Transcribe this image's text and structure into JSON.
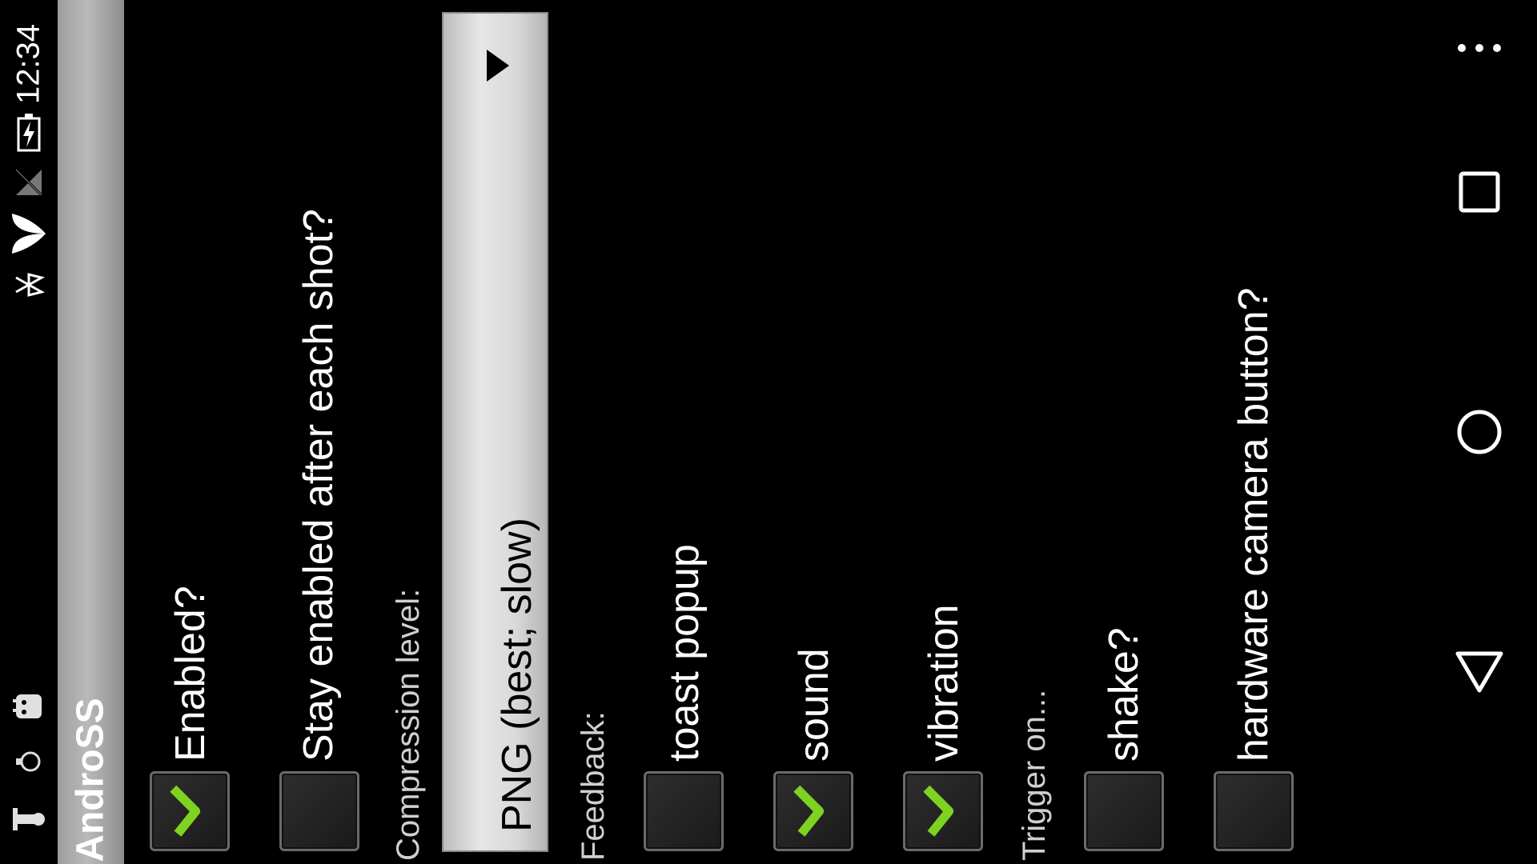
{
  "status_bar": {
    "time": "12:34",
    "icons": [
      "bluetooth-icon",
      "wifi-icon",
      "no-sim-icon",
      "battery-charging-icon",
      "android-debug-icon",
      "lightbulb-icon",
      "notification-icon"
    ]
  },
  "app": {
    "title": "AndroSS"
  },
  "settings": {
    "enabled_label": "Enabled?",
    "enabled_checked": true,
    "stay_enabled_label": "Stay enabled after each shot?",
    "stay_enabled_checked": false,
    "compression_label": "Compression level:",
    "compression_value": "PNG (best; slow)",
    "feedback_label": "Feedback:",
    "toast_label": "toast popup",
    "toast_checked": false,
    "sound_label": "sound",
    "sound_checked": true,
    "vibration_label": "vibration",
    "vibration_checked": true,
    "trigger_label": "Trigger on...",
    "shake_label": "shake?",
    "shake_checked": false,
    "camera_label": "hardware camera button?",
    "camera_checked": false
  },
  "nav_bar": {
    "icons": [
      "overflow-menu-icon",
      "recents-icon",
      "home-icon",
      "back-icon"
    ]
  },
  "colors": {
    "check_green": "#7ed321",
    "title_bar_gray": "#b9b9b9",
    "spinner_gray": "#d9d9d9"
  }
}
